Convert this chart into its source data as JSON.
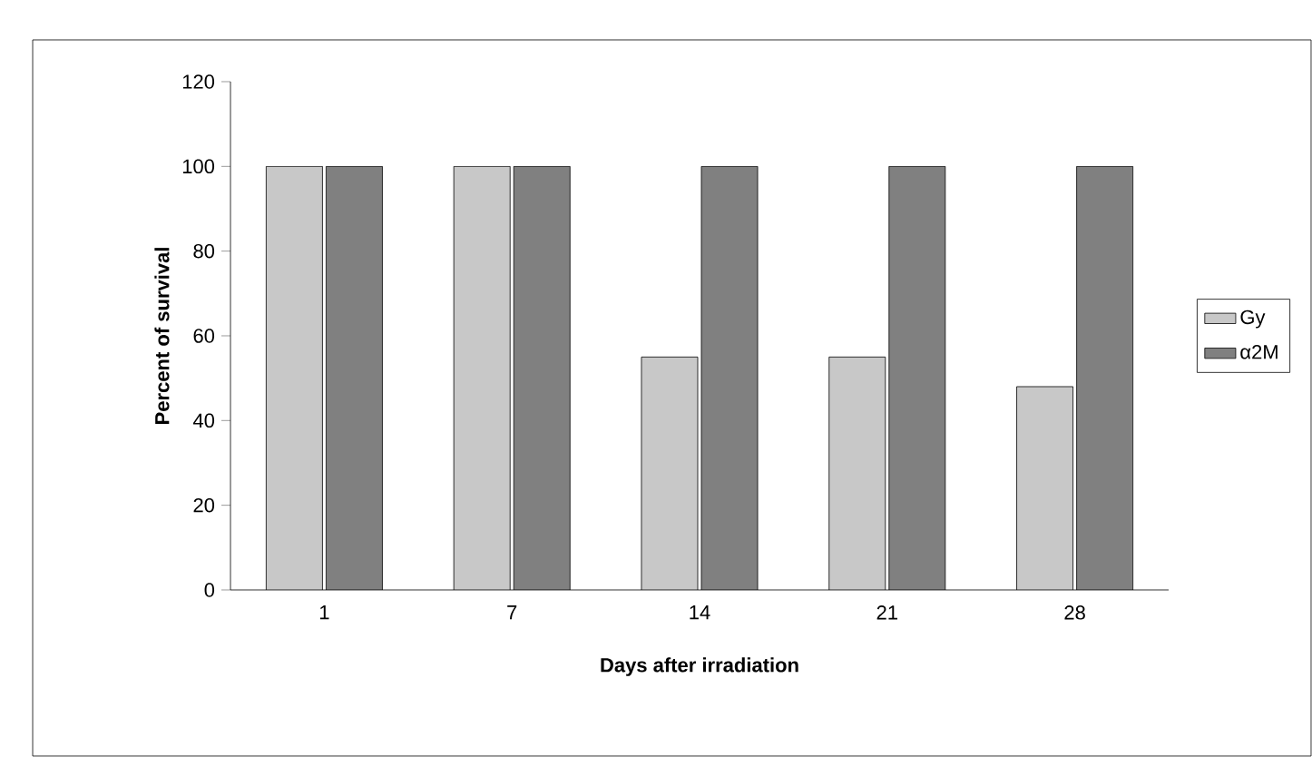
{
  "chart_data": {
    "type": "bar",
    "xlabel": "Days after irradiation",
    "ylabel": "Percent of survival",
    "categories": [
      "1",
      "7",
      "14",
      "21",
      "28"
    ],
    "series": [
      {
        "name": "Gy",
        "color": "#c8c8c8",
        "values": [
          100,
          100,
          55,
          55,
          48
        ]
      },
      {
        "name": "α2M",
        "color": "#808080",
        "values": [
          100,
          100,
          100,
          100,
          100
        ]
      }
    ],
    "ylim": [
      0,
      120
    ],
    "yticks": [
      0,
      20,
      40,
      60,
      80,
      100,
      120
    ],
    "grid": false,
    "legend": "right"
  }
}
